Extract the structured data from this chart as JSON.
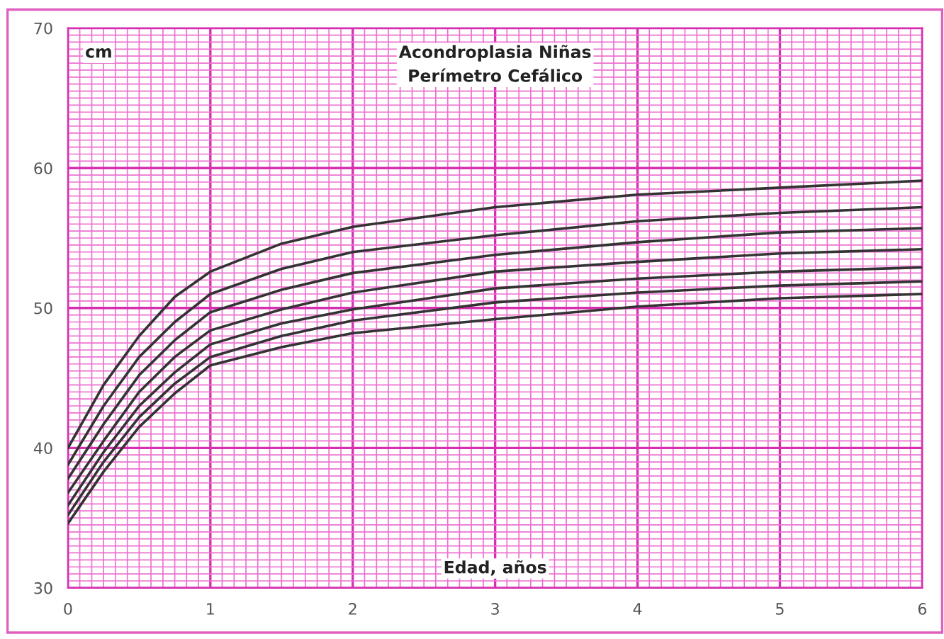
{
  "chart_data": {
    "type": "line",
    "title": "Acondroplasia Niñas\nPerímetro Cefálico",
    "xlabel": "Edad, años",
    "ylabel": "cm",
    "x": [
      0,
      0.25,
      0.5,
      0.75,
      1,
      1.5,
      2,
      3,
      4,
      5,
      6
    ],
    "series": [
      {
        "color": "#333333",
        "values": [
          40.0,
          44.5,
          48.0,
          50.8,
          52.6,
          54.6,
          55.8,
          57.2,
          58.1,
          58.6,
          59.1
        ]
      },
      {
        "color": "#333333",
        "values": [
          38.8,
          43.0,
          46.5,
          49.0,
          51.0,
          52.8,
          54.0,
          55.2,
          56.2,
          56.8,
          57.2
        ]
      },
      {
        "color": "#333333",
        "values": [
          37.8,
          41.7,
          45.2,
          47.7,
          49.7,
          51.3,
          52.5,
          53.8,
          54.7,
          55.4,
          55.7
        ]
      },
      {
        "color": "#333333",
        "values": [
          36.8,
          40.5,
          44.0,
          46.5,
          48.4,
          49.9,
          51.1,
          52.6,
          53.3,
          53.9,
          54.2
        ]
      },
      {
        "color": "#333333",
        "values": [
          35.9,
          39.7,
          43.0,
          45.4,
          47.4,
          48.9,
          49.9,
          51.4,
          52.1,
          52.6,
          52.9
        ]
      },
      {
        "color": "#333333",
        "values": [
          35.2,
          39.0,
          42.2,
          44.6,
          46.5,
          48.0,
          49.1,
          50.4,
          51.1,
          51.6,
          51.9
        ]
      },
      {
        "color": "#333333",
        "values": [
          34.6,
          38.3,
          41.5,
          43.9,
          45.9,
          47.2,
          48.2,
          49.2,
          50.1,
          50.7,
          51.0
        ]
      }
    ],
    "xlim": [
      0,
      6
    ],
    "ylim": [
      30,
      70
    ],
    "xticks": [
      0,
      {
        "value": 0.083,
        "label": null
      },
      {
        "value": 0.167,
        "label": null
      },
      {
        "value": 0.25,
        "label": null
      },
      {
        "value": 0.333,
        "label": null
      },
      {
        "value": 0.417,
        "label": null
      },
      {
        "value": 0.5,
        "label": null
      },
      {
        "value": 0.583,
        "label": null
      },
      {
        "value": 0.667,
        "label": null
      },
      {
        "value": 0.75,
        "label": null
      },
      {
        "value": 0.833,
        "label": null
      },
      {
        "value": 0.917,
        "label": null
      },
      1,
      {
        "value": 1.083,
        "label": null
      },
      {
        "value": 1.167,
        "label": null
      },
      {
        "value": 1.25,
        "label": null
      },
      {
        "value": 1.333,
        "label": null
      },
      {
        "value": 1.417,
        "label": null
      },
      {
        "value": 1.5,
        "label": null
      },
      {
        "value": 1.583,
        "label": null
      },
      {
        "value": 1.667,
        "label": null
      },
      {
        "value": 1.75,
        "label": null
      },
      {
        "value": 1.833,
        "label": null
      },
      {
        "value": 1.917,
        "label": null
      },
      2,
      {
        "value": 2.083,
        "label": null
      },
      {
        "value": 2.167,
        "label": null
      },
      {
        "value": 2.25,
        "label": null
      },
      {
        "value": 2.333,
        "label": null
      },
      {
        "value": 2.417,
        "label": null
      },
      {
        "value": 2.5,
        "label": null
      },
      {
        "value": 2.583,
        "label": null
      },
      {
        "value": 2.667,
        "label": null
      },
      {
        "value": 2.75,
        "label": null
      },
      {
        "value": 2.833,
        "label": null
      },
      {
        "value": 2.917,
        "label": null
      },
      3,
      {
        "value": 3.083,
        "label": null
      },
      {
        "value": 3.167,
        "label": null
      },
      {
        "value": 3.25,
        "label": null
      },
      {
        "value": 3.333,
        "label": null
      },
      {
        "value": 3.417,
        "label": null
      },
      {
        "value": 3.5,
        "label": null
      },
      {
        "value": 3.583,
        "label": null
      },
      {
        "value": 3.667,
        "label": null
      },
      {
        "value": 3.75,
        "label": null
      },
      {
        "value": 3.833,
        "label": null
      },
      {
        "value": 3.917,
        "label": null
      },
      4,
      {
        "value": 4.083,
        "label": null
      },
      {
        "value": 4.167,
        "label": null
      },
      {
        "value": 4.25,
        "label": null
      },
      {
        "value": 4.333,
        "label": null
      },
      {
        "value": 4.417,
        "label": null
      },
      {
        "value": 4.5,
        "label": null
      },
      {
        "value": 4.583,
        "label": null
      },
      {
        "value": 4.667,
        "label": null
      },
      {
        "value": 4.75,
        "label": null
      },
      {
        "value": 4.833,
        "label": null
      },
      {
        "value": 4.917,
        "label": null
      },
      5,
      {
        "value": 5.083,
        "label": null
      },
      {
        "value": 5.167,
        "label": null
      },
      {
        "value": 5.25,
        "label": null
      },
      {
        "value": 5.333,
        "label": null
      },
      {
        "value": 5.417,
        "label": null
      },
      {
        "value": 5.5,
        "label": null
      },
      {
        "value": 5.583,
        "label": null
      },
      {
        "value": 5.667,
        "label": null
      },
      {
        "value": 5.75,
        "label": null
      },
      {
        "value": 5.833,
        "label": null
      },
      {
        "value": 5.917,
        "label": null
      },
      6
    ],
    "yticks": [
      30,
      {
        "value": 30.5,
        "label": null
      },
      {
        "value": 31,
        "label": null
      },
      {
        "value": 31.5,
        "label": null
      },
      {
        "value": 32,
        "label": null
      },
      {
        "value": 32.5,
        "label": null
      },
      {
        "value": 33,
        "label": null
      },
      {
        "value": 33.5,
        "label": null
      },
      {
        "value": 34,
        "label": null
      },
      {
        "value": 34.5,
        "label": null
      },
      {
        "value": 35,
        "label": null
      },
      {
        "value": 35.5,
        "label": null
      },
      {
        "value": 36,
        "label": null
      },
      {
        "value": 36.5,
        "label": null
      },
      {
        "value": 37,
        "label": null
      },
      {
        "value": 37.5,
        "label": null
      },
      {
        "value": 38,
        "label": null
      },
      {
        "value": 38.5,
        "label": null
      },
      {
        "value": 39,
        "label": null
      },
      {
        "value": 39.5,
        "label": null
      },
      40,
      {
        "value": 40.5,
        "label": null
      },
      {
        "value": 41,
        "label": null
      },
      {
        "value": 41.5,
        "label": null
      },
      {
        "value": 42,
        "label": null
      },
      {
        "value": 42.5,
        "label": null
      },
      {
        "value": 43,
        "label": null
      },
      {
        "value": 43.5,
        "label": null
      },
      {
        "value": 44,
        "label": null
      },
      {
        "value": 44.5,
        "label": null
      },
      {
        "value": 45,
        "label": null
      },
      {
        "value": 45.5,
        "label": null
      },
      {
        "value": 46,
        "label": null
      },
      {
        "value": 46.5,
        "label": null
      },
      {
        "value": 47,
        "label": null
      },
      {
        "value": 47.5,
        "label": null
      },
      {
        "value": 48,
        "label": null
      },
      {
        "value": 48.5,
        "label": null
      },
      {
        "value": 49,
        "label": null
      },
      {
        "value": 49.5,
        "label": null
      },
      50,
      {
        "value": 50.5,
        "label": null
      },
      {
        "value": 51,
        "label": null
      },
      {
        "value": 51.5,
        "label": null
      },
      {
        "value": 52,
        "label": null
      },
      {
        "value": 52.5,
        "label": null
      },
      {
        "value": 53,
        "label": null
      },
      {
        "value": 53.5,
        "label": null
      },
      {
        "value": 54,
        "label": null
      },
      {
        "value": 54.5,
        "label": null
      },
      {
        "value": 55,
        "label": null
      },
      {
        "value": 55.5,
        "label": null
      },
      {
        "value": 56,
        "label": null
      },
      {
        "value": 56.5,
        "label": null
      },
      {
        "value": 57,
        "label": null
      },
      {
        "value": 57.5,
        "label": null
      },
      {
        "value": 58,
        "label": null
      },
      {
        "value": 58.5,
        "label": null
      },
      {
        "value": 59,
        "label": null
      },
      {
        "value": 59.5,
        "label": null
      },
      60,
      {
        "value": 60.5,
        "label": null
      },
      {
        "value": 61,
        "label": null
      },
      {
        "value": 61.5,
        "label": null
      },
      {
        "value": 62,
        "label": null
      },
      {
        "value": 62.5,
        "label": null
      },
      {
        "value": 63,
        "label": null
      },
      {
        "value": 63.5,
        "label": null
      },
      {
        "value": 64,
        "label": null
      },
      {
        "value": 64.5,
        "label": null
      },
      {
        "value": 65,
        "label": null
      },
      {
        "value": 65.5,
        "label": null
      },
      {
        "value": 66,
        "label": null
      },
      {
        "value": 66.5,
        "label": null
      },
      {
        "value": 67,
        "label": null
      },
      {
        "value": 67.5,
        "label": null
      },
      {
        "value": 68,
        "label": null
      },
      {
        "value": 68.5,
        "label": null
      },
      {
        "value": 69,
        "label": null
      },
      {
        "value": 69.5,
        "label": null
      },
      70
    ],
    "grid": true,
    "legend": false,
    "marker": "none",
    "line_style": "solid"
  }
}
